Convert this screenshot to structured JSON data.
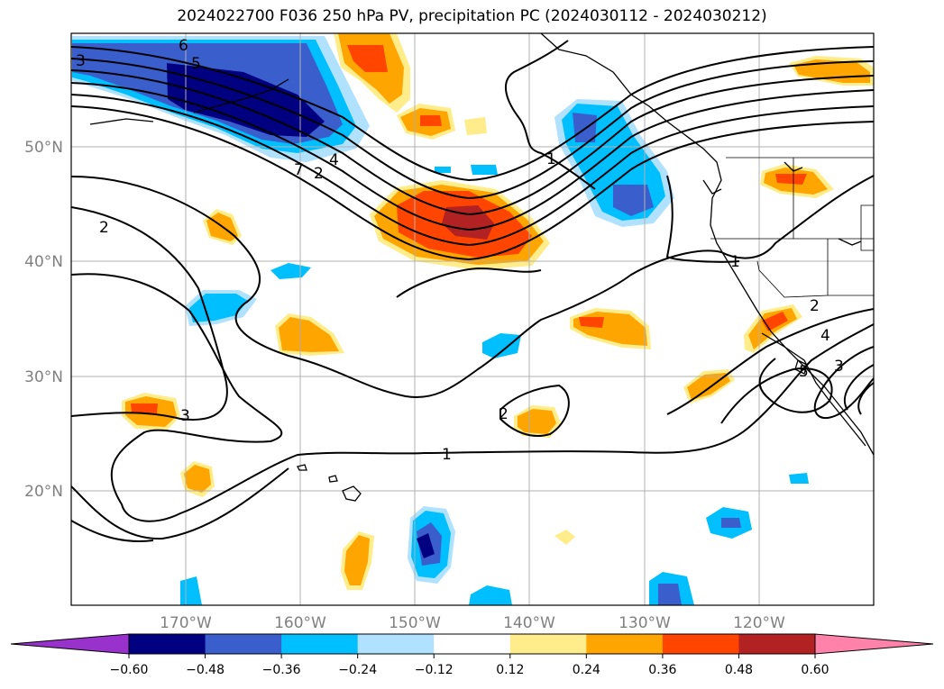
{
  "title": "2024022700 F036 250 hPa PV, precipitation PC (2024030112 - 2024030212)",
  "lat_labels": [
    "50°N",
    "40°N",
    "30°N",
    "20°N"
  ],
  "lon_labels": [
    "170°W",
    "160°W",
    "150°W",
    "140°W",
    "130°W",
    "120°W"
  ],
  "contour_labels": [
    "1",
    "1",
    "1",
    "2",
    "2",
    "2",
    "2",
    "3",
    "3",
    "3",
    "4",
    "4",
    "5",
    "5",
    "6",
    "7"
  ],
  "colorbar": {
    "ticks": [
      "−0.60",
      "−0.48",
      "−0.36",
      "−0.24",
      "−0.12",
      "0.12",
      "0.24",
      "0.36",
      "0.48",
      "0.60"
    ],
    "colors": [
      "#9932cc",
      "#000080",
      "#3a5fcd",
      "#00bfff",
      "#b0e2ff",
      "#ffffff",
      "#ffec8b",
      "#ffa500",
      "#ff4500",
      "#b22222",
      "#ff82ab"
    ]
  },
  "chart_data": {
    "type": "heatmap",
    "title": "2024022700 F036 250 hPa PV, precipitation PC (2024030112 - 2024030212)",
    "x_range": [
      "180°W",
      "110°W"
    ],
    "y_range": [
      "10°N",
      "60°N"
    ],
    "contour_field": "250 hPa PV",
    "contour_levels": [
      1,
      2,
      3,
      4,
      5,
      6,
      7
    ],
    "shaded_field": "precipitation PC",
    "shade_levels": [
      -0.6,
      -0.48,
      -0.36,
      -0.24,
      -0.12,
      0.12,
      0.24,
      0.36,
      0.48,
      0.6
    ],
    "grid": true,
    "colorbar": "bottom, extended both ends"
  }
}
